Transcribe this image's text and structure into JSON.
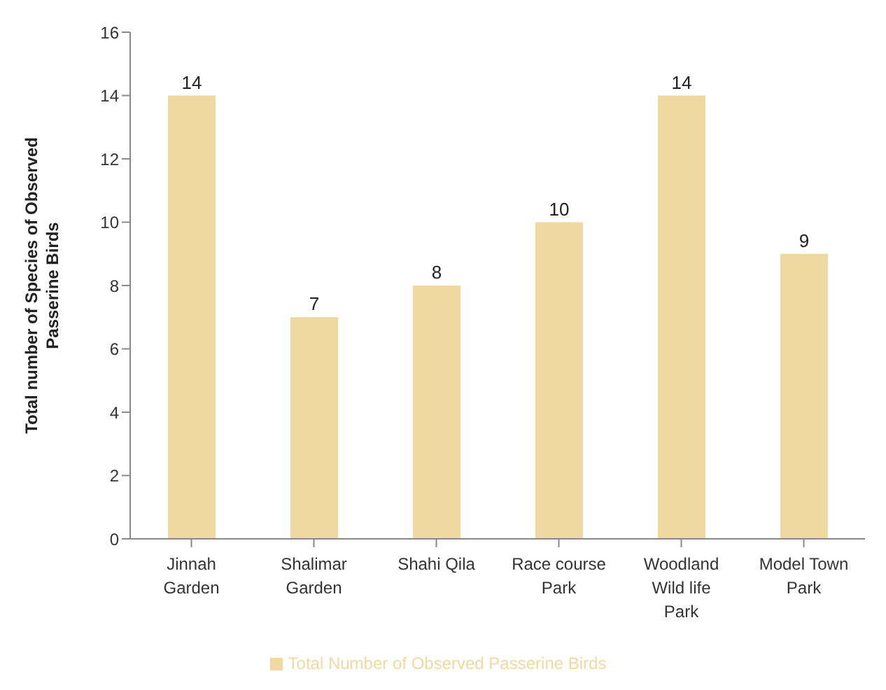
{
  "chart_data": {
    "type": "bar",
    "categories": [
      "Jinnah Garden",
      "Shalimar Garden",
      "Shahi Qila",
      "Race course Park",
      "Woodland Wild life Park",
      "Model Town Park"
    ],
    "series": [
      {
        "name": "Total Number of Observed Passerine Birds",
        "color": "#f0d9a0",
        "values": [
          14,
          7,
          8,
          10,
          14,
          9
        ]
      }
    ],
    "ylabel": "Total number of Species of Observed Passerine Birds",
    "ylim": [
      0,
      16
    ],
    "yticks": [
      0,
      2,
      4,
      6,
      8,
      10,
      12,
      14,
      16
    ],
    "data_labels": true,
    "legend": "bottom",
    "grid": false
  }
}
